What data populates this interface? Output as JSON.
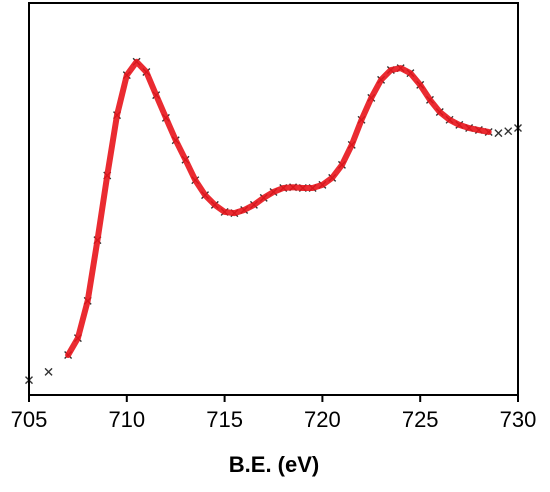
{
  "chart_data": {
    "type": "line",
    "xlabel": "B.E. (eV)",
    "x": [
      705,
      706,
      707,
      707.5,
      708,
      708.5,
      709,
      709.5,
      710,
      710.5,
      711,
      711.5,
      712,
      712.5,
      713,
      713.5,
      714,
      714.5,
      715,
      715.5,
      716,
      716.5,
      717,
      717.5,
      718,
      718.5,
      719,
      719.5,
      720,
      720.5,
      721,
      721.5,
      722,
      722.5,
      723,
      723.5,
      724,
      724.5,
      725,
      725.5,
      726,
      726.5,
      727,
      727.5,
      728,
      728.5,
      729,
      729.5,
      730
    ],
    "series": [
      {
        "type": "scatter",
        "color": "#333333",
        "values": [
          3.8,
          5.9,
          10.2,
          14.5,
          24,
          39.5,
          56,
          71.4,
          81.6,
          85,
          82.4,
          76.5,
          70.7,
          65,
          60,
          54.8,
          51,
          48.5,
          46.7,
          46.4,
          47.2,
          48.5,
          50.3,
          51.8,
          52.8,
          53,
          52.8,
          52.8,
          53.6,
          55.4,
          58.7,
          63.8,
          70.2,
          75.8,
          80.4,
          82.9,
          83.4,
          82.1,
          79.1,
          75.3,
          72.2,
          70.2,
          68.9,
          68.1,
          67.6,
          67.1,
          66.8,
          67.3,
          68.1
        ]
      },
      {
        "type": "line",
        "color": "#e8141b",
        "values": [
          null,
          null,
          10.2,
          14.5,
          24,
          39.5,
          56,
          71.4,
          81.6,
          85,
          82.4,
          76.5,
          70.7,
          65,
          60,
          54.8,
          51,
          48.5,
          46.7,
          46.4,
          47.2,
          48.5,
          50.3,
          51.8,
          52.8,
          53,
          52.8,
          52.8,
          53.6,
          55.4,
          58.7,
          63.8,
          70.2,
          75.8,
          80.4,
          82.9,
          83.4,
          82.1,
          79.1,
          75.3,
          72.2,
          70.2,
          68.9,
          68.1,
          67.6,
          67.1,
          null,
          null,
          null
        ]
      }
    ],
    "xlim": [
      705,
      730
    ],
    "xticks": [
      705,
      710,
      715,
      720,
      725,
      730
    ],
    "ylim": [
      0,
      100
    ]
  }
}
